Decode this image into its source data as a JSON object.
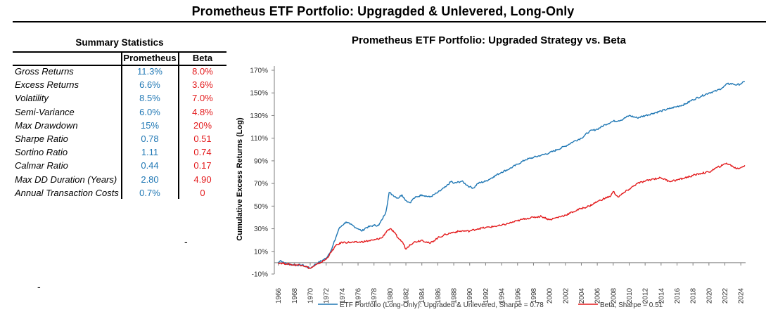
{
  "page_title": "Prometheus ETF Portfolio: Upgragded & Unlevered, Long-Only",
  "summary": {
    "caption": "Summary Statistics",
    "columns": [
      "Prometheus",
      "Beta"
    ],
    "rows": [
      {
        "label": "Gross Returns",
        "prometheus": "11.3%",
        "beta": "8.0%"
      },
      {
        "label": "Excess Returns",
        "prometheus": "6.6%",
        "beta": "3.6%"
      },
      {
        "label": "Volatility",
        "prometheus": "8.5%",
        "beta": "7.0%"
      },
      {
        "label": "Semi-Variance",
        "prometheus": "6.0%",
        "beta": "4.8%"
      },
      {
        "label": "Max Drawdown",
        "prometheus": "15%",
        "beta": "20%"
      },
      {
        "label": "Sharpe Ratio",
        "prometheus": "0.78",
        "beta": "0.51"
      },
      {
        "label": "Sortino Ratio",
        "prometheus": "1.11",
        "beta": "0.74"
      },
      {
        "label": "Calmar Ratio",
        "prometheus": "0.44",
        "beta": "0.17"
      },
      {
        "label": "Max DD Duration (Years)",
        "prometheus": "2.80",
        "beta": "4.90"
      },
      {
        "label": "Annual Transaction Costs",
        "prometheus": "0.7%",
        "beta": "0"
      }
    ]
  },
  "stray_marks": [
    "-",
    "-"
  ],
  "colors": {
    "prometheus": "#1f77b4",
    "beta": "#e31a1c",
    "axis": "#7f7f7f",
    "text": "#000000"
  },
  "chart_data": {
    "type": "line",
    "title": "Prometheus ETF Portfolio: Upgraded Strategy vs. Beta",
    "xlabel": "",
    "ylabel": "Cumulative Excess Returns (Log)",
    "xlim": [
      1965.5,
      2024.6
    ],
    "ylim": [
      -10,
      170
    ],
    "ytick_labels": [
      "-10%",
      "10%",
      "30%",
      "50%",
      "70%",
      "90%",
      "110%",
      "130%",
      "150%",
      "170%"
    ],
    "ytick_values": [
      -10,
      10,
      30,
      50,
      70,
      90,
      110,
      130,
      150,
      170
    ],
    "xtick_labels": [
      "1966",
      "1968",
      "1970",
      "1972",
      "1974",
      "1976",
      "1978",
      "1980",
      "1982",
      "1984",
      "1986",
      "1988",
      "1990",
      "1992",
      "1994",
      "1996",
      "1998",
      "2000",
      "2002",
      "2004",
      "2006",
      "2008",
      "2010",
      "2012",
      "2014",
      "2016",
      "2018",
      "2020",
      "2022",
      "2024"
    ],
    "xtick_values": [
      1966,
      1968,
      1970,
      1972,
      1974,
      1976,
      1978,
      1980,
      1982,
      1984,
      1986,
      1988,
      1990,
      1992,
      1994,
      1996,
      1998,
      2000,
      2002,
      2004,
      2006,
      2008,
      2010,
      2012,
      2014,
      2016,
      2018,
      2020,
      2022,
      2024
    ],
    "legend_position": "bottom",
    "series": [
      {
        "name": "ETF Portfolio (Long-Only): Upgraded & Unlevered, Sharpe = 0.78",
        "color": "#1f77b4",
        "x": [
          1966,
          1966.3,
          1967,
          1968,
          1969,
          1970,
          1970.5,
          1971,
          1972,
          1972.7,
          1973.2,
          1973.6,
          1974,
          1974.5,
          1975,
          1976,
          1976.5,
          1977,
          1978,
          1978.6,
          1979,
          1979.5,
          1979.9,
          1980.3,
          1981,
          1981.5,
          1982,
          1982.5,
          1983,
          1984,
          1985,
          1986,
          1987,
          1987.7,
          1988,
          1989,
          1990,
          1990.5,
          1991,
          1992,
          1993,
          1994,
          1995,
          1996,
          1997,
          1998,
          1999,
          2000,
          2001,
          2002,
          2003,
          2004,
          2005,
          2006,
          2007,
          2008,
          2009,
          2010,
          2011,
          2012,
          2013,
          2014,
          2015,
          2016,
          2017,
          2018,
          2019,
          2020,
          2021,
          2021.8,
          2022.3,
          2023,
          2023.5,
          2024,
          2024.5
        ],
        "y": [
          0,
          2,
          -1,
          -2,
          -2,
          -5,
          -2,
          0,
          4,
          12,
          22,
          30,
          33,
          36,
          34,
          30,
          28,
          31,
          33,
          33,
          38,
          45,
          62,
          60,
          57,
          60,
          55,
          53,
          57,
          60,
          58,
          62,
          67,
          72,
          70,
          72,
          67,
          66,
          70,
          72,
          76,
          80,
          83,
          87,
          91,
          93,
          95,
          97,
          100,
          103,
          107,
          110,
          116,
          118,
          122,
          125,
          126,
          130,
          128,
          130,
          132,
          134,
          136,
          138,
          140,
          144,
          147,
          150,
          152,
          155,
          158,
          158,
          157,
          158,
          160
        ]
      },
      {
        "name": "Beta, Sharpe = 0.51",
        "color": "#e31a1c",
        "x": [
          1966,
          1967,
          1968,
          1969,
          1970,
          1970.5,
          1971,
          1972,
          1972.7,
          1973.2,
          1974,
          1975,
          1976,
          1977,
          1978,
          1979,
          1979.6,
          1980,
          1980.5,
          1981,
          1981.6,
          1982,
          1982.5,
          1983,
          1984,
          1985,
          1986,
          1987,
          1988,
          1989,
          1990,
          1991,
          1992,
          1993,
          1994,
          1995,
          1996,
          1997,
          1998,
          1999,
          2000,
          2001,
          2002,
          2003,
          2004,
          2005,
          2006,
          2007,
          2007.7,
          2008,
          2008.6,
          2009,
          2010,
          2011,
          2012,
          2013,
          2014,
          2015,
          2016,
          2017,
          2018,
          2019,
          2020,
          2021,
          2021.7,
          2022.2,
          2023,
          2023.5,
          2024,
          2024.5
        ],
        "y": [
          0,
          -1,
          -2,
          -2,
          -5,
          -3,
          -1,
          3,
          10,
          15,
          18,
          18,
          18,
          19,
          20,
          22,
          28,
          30,
          27,
          22,
          18,
          12,
          16,
          18,
          20,
          17,
          22,
          25,
          27,
          28,
          28,
          30,
          31,
          32,
          33,
          35,
          37,
          39,
          40,
          41,
          38,
          40,
          42,
          45,
          48,
          50,
          54,
          57,
          59,
          63,
          58,
          60,
          65,
          70,
          72,
          74,
          75,
          72,
          73,
          75,
          77,
          79,
          80,
          84,
          86,
          88,
          85,
          83,
          84,
          86
        ]
      }
    ]
  }
}
